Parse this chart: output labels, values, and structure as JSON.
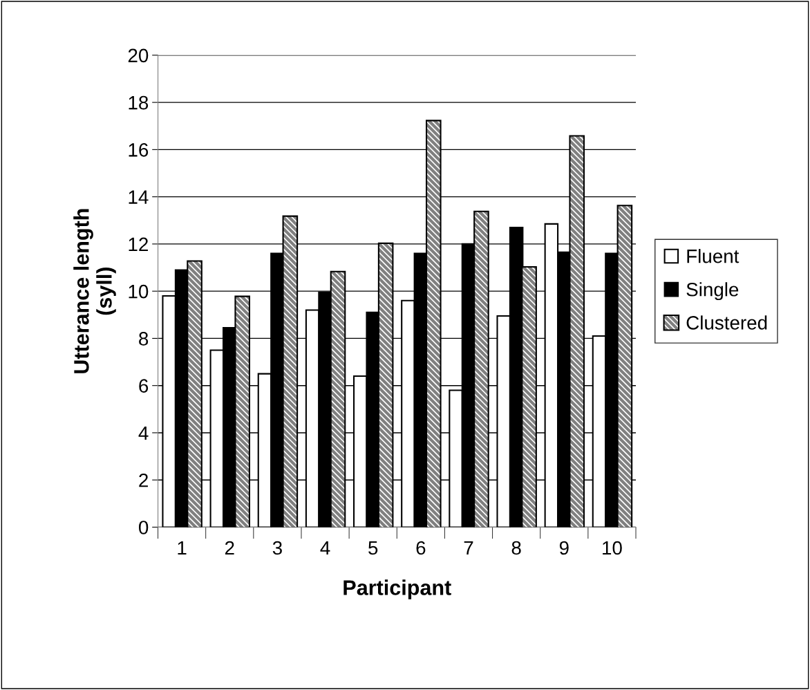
{
  "chart_data": {
    "type": "bar",
    "xlabel": "Participant",
    "ylabel": "Utterance length\n(syll)",
    "categories": [
      "1",
      "2",
      "3",
      "4",
      "5",
      "6",
      "7",
      "8",
      "9",
      "10"
    ],
    "series": [
      {
        "name": "Fluent",
        "color": "#ffffff",
        "values": [
          9.8,
          7.5,
          6.5,
          9.2,
          6.4,
          9.6,
          5.8,
          8.95,
          12.85,
          8.1
        ]
      },
      {
        "name": "Single",
        "color": "#000000",
        "values": [
          10.9,
          8.45,
          11.6,
          9.95,
          9.1,
          11.6,
          12.0,
          12.7,
          11.65,
          11.6
        ]
      },
      {
        "name": "Clustered",
        "color": "#808080",
        "values": [
          11.25,
          9.75,
          13.15,
          10.8,
          12.0,
          17.2,
          13.35,
          11.0,
          16.55,
          13.6
        ]
      }
    ],
    "ylim": [
      0,
      20
    ],
    "yticks": [
      0,
      2,
      4,
      6,
      8,
      10,
      12,
      14,
      16,
      18,
      20
    ],
    "grid": "y",
    "legend": "right"
  }
}
